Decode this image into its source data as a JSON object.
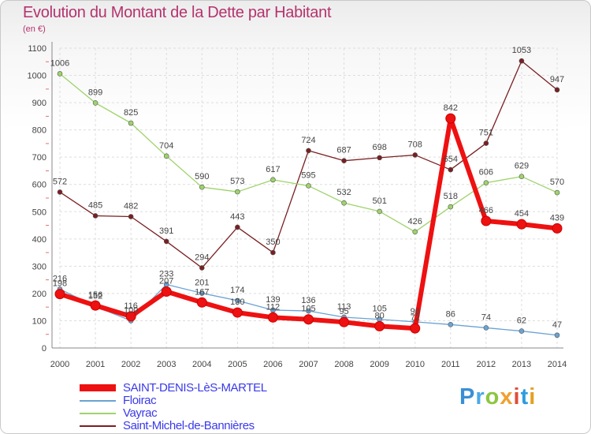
{
  "title": "Evolution du Montant de la Dette par Habitant",
  "subtitle": "(en €)",
  "logo": {
    "text": "Proxiti",
    "letters": [
      "P",
      "r",
      "o",
      "x",
      "i",
      "t",
      "i"
    ]
  },
  "chart_data": {
    "type": "line",
    "x": [
      2000,
      2001,
      2002,
      2003,
      2004,
      2005,
      2006,
      2007,
      2008,
      2009,
      2010,
      2011,
      2012,
      2013,
      2014
    ],
    "ylim": [
      0,
      1100
    ],
    "yticks": [
      0,
      100,
      200,
      300,
      400,
      500,
      600,
      700,
      800,
      900,
      1000,
      1100
    ],
    "grid": true,
    "legend_position": "bottom-left",
    "series": [
      {
        "name": "SAINT-DENIS-LèS-MARTEL",
        "color": "#ee1111",
        "values": [
          198,
          156,
          116,
          207,
          167,
          130,
          112,
          105,
          95,
          80,
          72,
          842,
          466,
          454,
          439
        ],
        "labels": [
          "198",
          "156",
          "116",
          "207",
          "167",
          "130",
          "112",
          "105",
          "95",
          "80",
          "72",
          "842",
          "466",
          "454",
          "439"
        ]
      },
      {
        "name": "Floirac",
        "color": "#6aa3d4",
        "values": [
          216,
          152,
          100,
          233,
          201,
          174,
          139,
          136,
          113,
          105,
          96,
          86,
          74,
          62,
          47
        ],
        "labels": [
          "216",
          "152",
          "100",
          "233",
          "201",
          "174",
          "139",
          "136",
          "113",
          "105",
          "96",
          "86",
          "74",
          "62",
          "47"
        ]
      },
      {
        "name": "Vayrac",
        "color": "#9ed36a",
        "values": [
          1006,
          899,
          825,
          704,
          590,
          573,
          617,
          595,
          532,
          501,
          426,
          518,
          606,
          629,
          570
        ],
        "labels": [
          "1006",
          "899",
          "825",
          "704",
          "590",
          "573",
          "617",
          "595",
          "532",
          "501",
          "426",
          "518",
          "606",
          "629",
          "570"
        ]
      },
      {
        "name": "Saint-Michel-de-Bannières",
        "color": "#7a1f22",
        "values": [
          572,
          485,
          482,
          391,
          294,
          443,
          350,
          724,
          687,
          698,
          708,
          654,
          751,
          1053,
          947
        ],
        "labels": [
          "572",
          "485",
          "482",
          "391",
          "294",
          "443",
          "350",
          "724",
          "687",
          "698",
          "708",
          "654",
          "751",
          "1053",
          "947"
        ]
      }
    ]
  }
}
